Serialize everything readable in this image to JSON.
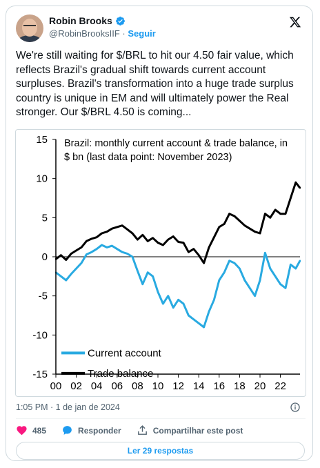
{
  "author": {
    "name": "Robin Brooks",
    "handle": "@RobinBrooksIIF",
    "separator": "·",
    "follow_label": "Seguir"
  },
  "tweet": {
    "text": "We're still waiting for $/BRL to hit our 4.50 fair value, which reflects Brazil's gradual shift towards current account surpluses. Brazil's transformation into a huge trade surplus country is unique in EM and will ultimately power the Real stronger. Our $/BRL 4.50 is coming..."
  },
  "meta": {
    "timestamp": "1:05 PM · 1 de jan de 2024"
  },
  "actions": {
    "likes_count": "485",
    "reply_label": "Responder",
    "share_label": "Compartilhar este post",
    "read_replies_label": "Ler 29 respostas"
  },
  "colors": {
    "accent": "#1d9bf0",
    "like": "#f91880",
    "current_account": "#29aae1",
    "trade_balance": "#000000"
  },
  "icons": [
    "verified-badge-icon",
    "x-logo-icon",
    "info-icon",
    "heart-icon",
    "reply-bubble-icon",
    "share-icon"
  ],
  "chart_data": {
    "type": "line",
    "title": "Brazil: monthly current account & trade balance, in $ bn (last data point: November 2023)",
    "title_lines": [
      "Brazil: monthly current account & trade balance, in",
      "$ bn (last data point: November 2023)"
    ],
    "xlabel": "",
    "ylabel": "",
    "x_ticks": [
      "00",
      "02",
      "04",
      "06",
      "08",
      "10",
      "12",
      "14",
      "16",
      "18",
      "20",
      "22"
    ],
    "y_ticks": [
      "15",
      "10",
      "5",
      "0",
      "-5",
      "-10",
      "-15"
    ],
    "xlim": [
      2000,
      2023.92
    ],
    "ylim": [
      -15,
      15
    ],
    "legend_position": "bottom-left",
    "series": [
      {
        "name": "Current account",
        "x": [
          2000.0,
          2000.5,
          2001.0,
          2001.5,
          2002.0,
          2002.5,
          2003.0,
          2003.5,
          2004.0,
          2004.5,
          2005.0,
          2005.5,
          2006.0,
          2006.5,
          2007.0,
          2007.5,
          2008.0,
          2008.5,
          2009.0,
          2009.5,
          2010.0,
          2010.5,
          2011.0,
          2011.5,
          2012.0,
          2012.5,
          2013.0,
          2013.5,
          2014.0,
          2014.5,
          2015.0,
          2015.5,
          2016.0,
          2016.5,
          2017.0,
          2017.5,
          2018.0,
          2018.5,
          2019.0,
          2019.5,
          2020.0,
          2020.5,
          2021.0,
          2021.5,
          2022.0,
          2022.5,
          2023.0,
          2023.5,
          2023.92
        ],
        "values": [
          -2.0,
          -2.5,
          -3.0,
          -2.2,
          -1.5,
          -0.8,
          0.3,
          0.6,
          1.0,
          1.5,
          1.2,
          1.4,
          1.0,
          0.6,
          0.4,
          0.0,
          -1.8,
          -3.5,
          -2.0,
          -2.5,
          -4.5,
          -6.0,
          -5.0,
          -6.5,
          -5.5,
          -6.0,
          -7.5,
          -8.0,
          -8.5,
          -9.0,
          -7.0,
          -5.5,
          -3.0,
          -2.0,
          -0.5,
          -0.8,
          -1.5,
          -3.0,
          -4.0,
          -5.0,
          -3.0,
          0.5,
          -1.5,
          -2.5,
          -3.5,
          -4.0,
          -1.0,
          -1.5,
          -0.5
        ]
      },
      {
        "name": "Trade balance",
        "x": [
          2000.0,
          2000.5,
          2001.0,
          2001.5,
          2002.0,
          2002.5,
          2003.0,
          2003.5,
          2004.0,
          2004.5,
          2005.0,
          2005.5,
          2006.0,
          2006.5,
          2007.0,
          2007.5,
          2008.0,
          2008.5,
          2009.0,
          2009.5,
          2010.0,
          2010.5,
          2011.0,
          2011.5,
          2012.0,
          2012.5,
          2013.0,
          2013.5,
          2014.0,
          2014.5,
          2015.0,
          2015.5,
          2016.0,
          2016.5,
          2017.0,
          2017.5,
          2018.0,
          2018.5,
          2019.0,
          2019.5,
          2020.0,
          2020.5,
          2021.0,
          2021.5,
          2022.0,
          2022.5,
          2023.0,
          2023.5,
          2023.92
        ],
        "values": [
          -0.3,
          0.2,
          -0.4,
          0.4,
          0.8,
          1.2,
          2.0,
          2.3,
          2.5,
          3.0,
          3.2,
          3.6,
          3.8,
          4.0,
          3.5,
          3.0,
          2.2,
          2.8,
          2.0,
          2.4,
          1.8,
          1.5,
          2.2,
          2.6,
          1.9,
          1.8,
          0.6,
          1.0,
          0.2,
          -0.8,
          1.2,
          2.5,
          3.8,
          4.2,
          5.5,
          5.2,
          4.6,
          4.0,
          3.6,
          3.2,
          3.0,
          5.5,
          5.0,
          6.0,
          5.5,
          5.5,
          7.5,
          9.5,
          8.8
        ]
      }
    ]
  }
}
